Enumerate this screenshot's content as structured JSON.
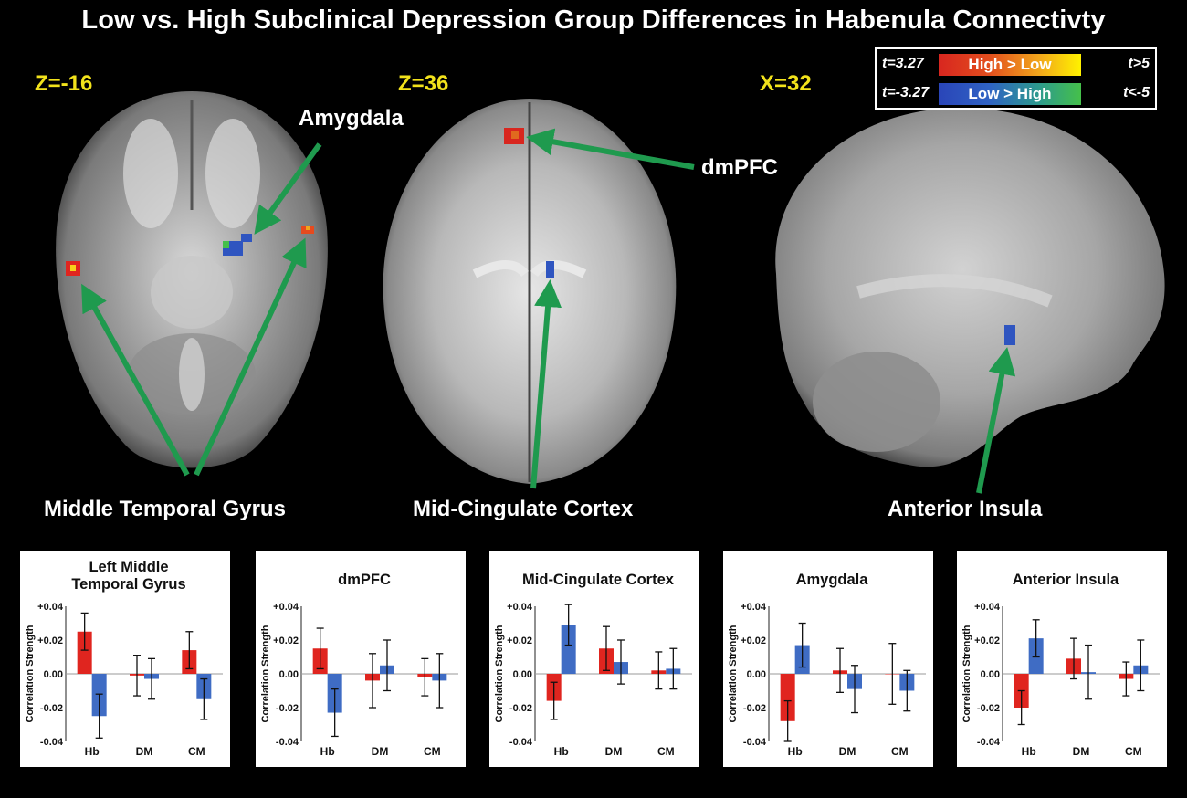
{
  "title": "Low vs. High Subclinical Depression Group Differences in Habenula Connectivty",
  "slices": {
    "axial_low": "Z=-16",
    "axial_high": "Z=36",
    "sagittal": "X=32"
  },
  "legend": {
    "warm": {
      "low": "t=3.27",
      "label": "High > Low",
      "high": "t>5"
    },
    "cool": {
      "low": "t=-3.27",
      "label": "Low > High",
      "high": "t<-5"
    }
  },
  "regions": {
    "amygdala": "Amygdala",
    "dmpfc": "dmPFC",
    "mtg": "Middle Temporal Gyrus",
    "mcc": "Mid-Cingulate Cortex",
    "insula": "Anterior Insula"
  },
  "colors": {
    "high_gt_low": "#e0251f",
    "low_gt_high": "#3f6cc4",
    "arrow": "#1f9a4e",
    "slice_label": "#f2e21b"
  },
  "chart_data": [
    {
      "type": "bar",
      "title": "Left Middle Temporal Gyrus",
      "title_lines": [
        "Left Middle",
        "Temporal Gyrus"
      ],
      "categories": [
        "Hb",
        "DM",
        "CM"
      ],
      "ylabel": "Correlation Strength",
      "ylim": [
        -0.04,
        0.04
      ],
      "yticks": [
        "+0.04",
        "+0.02",
        "0.00",
        "-0.02",
        "-0.04"
      ],
      "series": [
        {
          "color": "#e0251f",
          "values": [
            0.025,
            -0.001,
            0.014
          ],
          "errors": [
            0.011,
            0.012,
            0.011
          ]
        },
        {
          "color": "#3f6cc4",
          "values": [
            -0.025,
            -0.003,
            -0.015
          ],
          "errors": [
            0.013,
            0.012,
            0.012
          ]
        }
      ]
    },
    {
      "type": "bar",
      "title": "dmPFC",
      "title_lines": [
        "dmPFC"
      ],
      "categories": [
        "Hb",
        "DM",
        "CM"
      ],
      "ylabel": "Correlation Strength",
      "ylim": [
        -0.04,
        0.04
      ],
      "yticks": [
        "+0.04",
        "+0.02",
        "0.00",
        "-0.02",
        "-0.04"
      ],
      "series": [
        {
          "color": "#e0251f",
          "values": [
            0.015,
            -0.004,
            -0.002
          ],
          "errors": [
            0.012,
            0.016,
            0.011
          ]
        },
        {
          "color": "#3f6cc4",
          "values": [
            -0.023,
            0.005,
            -0.004
          ],
          "errors": [
            0.014,
            0.015,
            0.016
          ]
        }
      ]
    },
    {
      "type": "bar",
      "title": "Mid-Cingulate Cortex",
      "title_lines": [
        "Mid-Cingulate Cortex"
      ],
      "categories": [
        "Hb",
        "DM",
        "CM"
      ],
      "ylabel": "Correlation Strength",
      "ylim": [
        -0.04,
        0.04
      ],
      "yticks": [
        "+0.04",
        "+0.02",
        "0.00",
        "-0.02",
        "-0.04"
      ],
      "series": [
        {
          "color": "#e0251f",
          "values": [
            -0.016,
            0.015,
            0.002
          ],
          "errors": [
            0.011,
            0.013,
            0.011
          ]
        },
        {
          "color": "#3f6cc4",
          "values": [
            0.029,
            0.007,
            0.003
          ],
          "errors": [
            0.012,
            0.013,
            0.012
          ]
        }
      ]
    },
    {
      "type": "bar",
      "title": "Amygdala",
      "title_lines": [
        "Amygdala"
      ],
      "categories": [
        "Hb",
        "DM",
        "CM"
      ],
      "ylabel": "Correlation Strength",
      "ylim": [
        -0.04,
        0.04
      ],
      "yticks": [
        "+0.04",
        "+0.02",
        "0.00",
        "-0.02",
        "-0.04"
      ],
      "series": [
        {
          "color": "#e0251f",
          "values": [
            -0.028,
            0.002,
            0.0
          ],
          "errors": [
            0.012,
            0.013,
            0.018
          ]
        },
        {
          "color": "#3f6cc4",
          "values": [
            0.017,
            -0.009,
            -0.01
          ],
          "errors": [
            0.013,
            0.014,
            0.012
          ]
        }
      ]
    },
    {
      "type": "bar",
      "title": "Anterior Insula",
      "title_lines": [
        "Anterior Insula"
      ],
      "categories": [
        "Hb",
        "DM",
        "CM"
      ],
      "ylabel": "Correlation Strength",
      "ylim": [
        -0.04,
        0.04
      ],
      "yticks": [
        "+0.04",
        "+0.02",
        "0.00",
        "-0.02",
        "-0.04"
      ],
      "series": [
        {
          "color": "#e0251f",
          "values": [
            -0.02,
            0.009,
            -0.003
          ],
          "errors": [
            0.01,
            0.012,
            0.01
          ]
        },
        {
          "color": "#3f6cc4",
          "values": [
            0.021,
            0.001,
            0.005
          ],
          "errors": [
            0.011,
            0.016,
            0.015
          ]
        }
      ]
    }
  ]
}
